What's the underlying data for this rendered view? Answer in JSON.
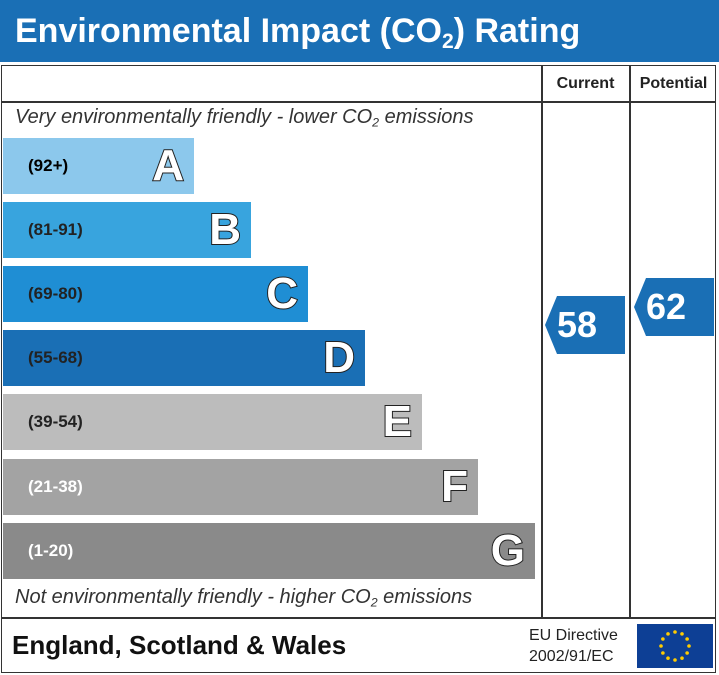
{
  "header": {
    "title_prefix": "Environmental Impact (CO",
    "title_sub": "2",
    "title_suffix": ") Rating"
  },
  "columns": {
    "current": "Current",
    "potential": "Potential"
  },
  "notes": {
    "top_prefix": "Very environmentally friendly - lower CO",
    "top_sub": "2",
    "top_suffix": " emissions",
    "bottom_prefix": "Not environmentally friendly - higher CO",
    "bottom_sub": "2",
    "bottom_suffix": " emissions"
  },
  "chart_data": {
    "type": "bar",
    "categories": [
      "A",
      "B",
      "C",
      "D",
      "E",
      "F",
      "G"
    ],
    "ranges": [
      "(92+)",
      "(81-91)",
      "(69-80)",
      "(55-68)",
      "(39-54)",
      "(21-38)",
      "(1-20)"
    ],
    "colors": [
      "#8cc8ec",
      "#38a4de",
      "#1f8ed4",
      "#1a6fb5",
      "#bcbcbc",
      "#a3a3a3",
      "#8a8a8a"
    ],
    "range_text_colors": [
      "#000000",
      "#222222",
      "#222222",
      "#222222",
      "#222222",
      "#ffffff",
      "#ffffff"
    ],
    "current": {
      "value": 58,
      "band": "D",
      "color": "#1a6fb5"
    },
    "potential": {
      "value": 62,
      "band": "D",
      "color": "#1a6fb5"
    }
  },
  "footer": {
    "region": "England, Scotland & Wales",
    "directive_line1": "EU Directive",
    "directive_line2": "2002/91/EC"
  },
  "flag": {
    "background": "#0d3f95",
    "star_color": "#ffcc00",
    "icon": "eu-flag-icon"
  }
}
